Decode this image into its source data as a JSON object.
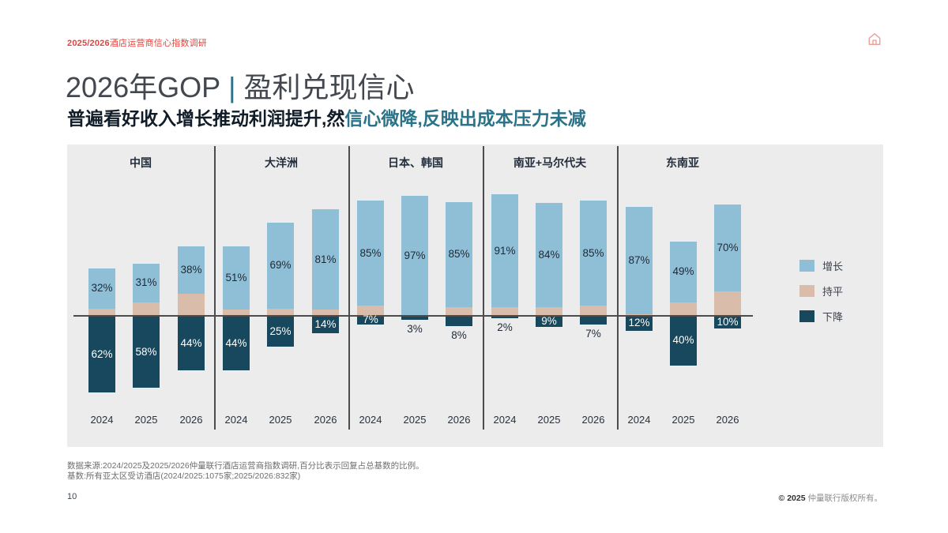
{
  "page": {
    "header": {
      "prefix": "2025/2026",
      "title": "酒店运营商信心指数调研"
    },
    "title": {
      "left": "2026年GOP",
      "separator": "|",
      "right": "盈利兑现信心"
    },
    "subtitle": {
      "dark": "普遍看好收入增长推动利润提升,然",
      "teal": "信心微降,反映出成本压力未减"
    },
    "footer": {
      "line1": "数据来源:2024/2025及2025/2026仲量联行酒店运营商指数调研,百分比表示回复占总基数的比例。",
      "line2": "基数:所有亚太区受访酒店(2024/2025:1075家;2025/2026:832家)"
    },
    "page_number": "10",
    "copyright": {
      "mark": "©",
      "year": "2025",
      "text": "仲量联行版权所有。"
    }
  },
  "colors": {
    "up": "#8FBFD6",
    "flat": "#D9BCA9",
    "down": "#17485D",
    "panel": "#ECECEC",
    "accent_red": "#E2453F",
    "teal": "#2A7388"
  },
  "chart_data": {
    "type": "bar",
    "subtype": "diverging-stacked-percent",
    "unit": "%",
    "legend": [
      {
        "key": "up",
        "label": "增长"
      },
      {
        "key": "flat",
        "label": "持平"
      },
      {
        "key": "down",
        "label": "下降"
      }
    ],
    "axis": {
      "zero_line": true,
      "scale": "percent-of-respondents"
    },
    "years": [
      "2024",
      "2025",
      "2026"
    ],
    "groups": [
      {
        "label": "中国",
        "bars": [
          {
            "year": "2024",
            "up": 32,
            "flat": 6,
            "down": 62,
            "down_label_inside": true
          },
          {
            "year": "2025",
            "up": 31,
            "flat": 11,
            "down": 58,
            "down_label_inside": true
          },
          {
            "year": "2026",
            "up": 38,
            "flat": 18,
            "down": 44,
            "down_label_inside": true
          }
        ]
      },
      {
        "label": "大洋洲",
        "bars": [
          {
            "year": "2024",
            "up": 51,
            "flat": 5,
            "down": 44,
            "down_label_inside": true
          },
          {
            "year": "2025",
            "up": 69,
            "flat": 6,
            "down": 25,
            "down_label_inside": true
          },
          {
            "year": "2026",
            "up": 81,
            "flat": 5,
            "down": 14,
            "down_label_inside": true
          }
        ]
      },
      {
        "label": "日本、韩国",
        "bars": [
          {
            "year": "2024",
            "up": 85,
            "flat": 8,
            "down": 7,
            "down_label_inside": true
          },
          {
            "year": "2025",
            "up": 97,
            "flat": 0,
            "down": 3,
            "down_label_inside": false
          },
          {
            "year": "2026",
            "up": 85,
            "flat": 7,
            "down": 8,
            "down_label_inside": false
          }
        ]
      },
      {
        "label": "南亚+马尔代夫",
        "bars": [
          {
            "year": "2024",
            "up": 91,
            "flat": 7,
            "down": 2,
            "down_label_inside": false
          },
          {
            "year": "2025",
            "up": 84,
            "flat": 7,
            "down": 9,
            "down_label_inside": true
          },
          {
            "year": "2026",
            "up": 85,
            "flat": 8,
            "down": 7,
            "down_label_inside": false
          }
        ]
      },
      {
        "label": "东南亚",
        "bars": [
          {
            "year": "2024",
            "up": 87,
            "flat": 1,
            "down": 12,
            "down_label_inside": true
          },
          {
            "year": "2025",
            "up": 49,
            "flat": 11,
            "down": 40,
            "down_label_inside": true
          },
          {
            "year": "2026",
            "up": 70,
            "flat": 20,
            "down": 10,
            "down_label_inside": true
          }
        ]
      }
    ]
  }
}
